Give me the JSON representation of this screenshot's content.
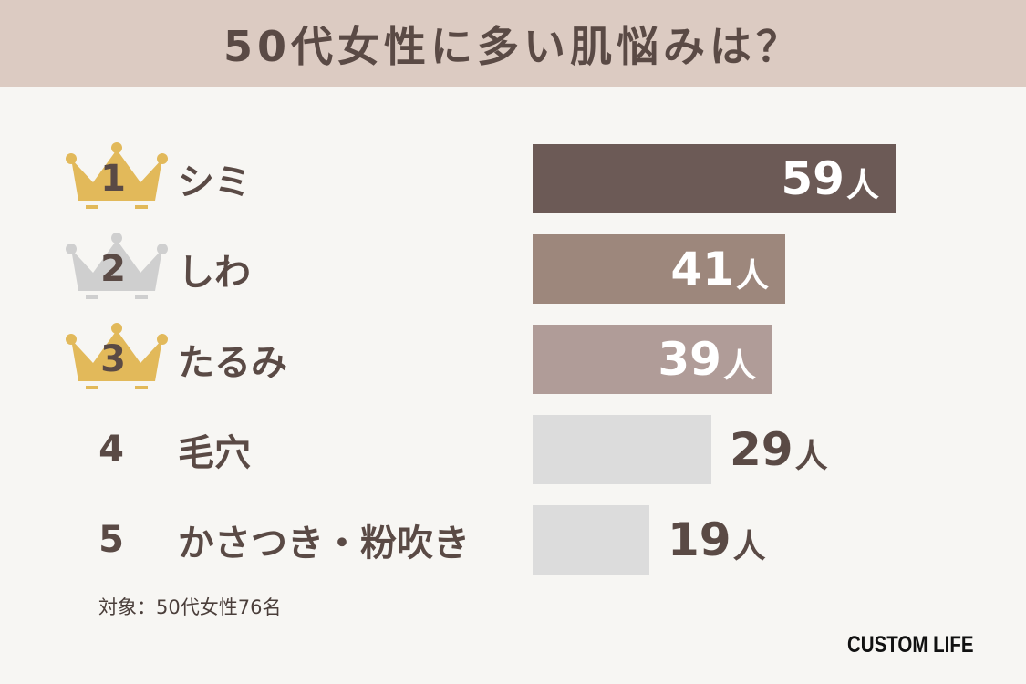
{
  "title": "50代女性に多い肌悩みは？",
  "footnote": "対象：50代女性76名",
  "brand": "CUSTOM LIFE",
  "unit": "人",
  "colors": {
    "header_bg": "#dccbc2",
    "bar_rank1": "#6c5a56",
    "bar_rank2": "#9d877c",
    "bar_rank3": "#b09c98",
    "bar_other": "#dcdcdc",
    "crown_gold": "#e2b95a",
    "crown_silver": "#cfcfcf"
  },
  "rows": [
    {
      "rank": "1",
      "label": "シミ",
      "count": "59",
      "crown": "gold"
    },
    {
      "rank": "2",
      "label": "しわ",
      "count": "41",
      "crown": "silver"
    },
    {
      "rank": "3",
      "label": "たるみ",
      "count": "39",
      "crown": "gold"
    },
    {
      "rank": "4",
      "label": "毛穴",
      "count": "29",
      "crown": "none"
    },
    {
      "rank": "5",
      "label": "かさつき・粉吹き",
      "count": "19",
      "crown": "none"
    }
  ],
  "chart_data": {
    "type": "bar",
    "orientation": "horizontal",
    "title": "50代女性に多い肌悩みは？",
    "categories": [
      "シミ",
      "しわ",
      "たるみ",
      "毛穴",
      "かさつき・粉吹き"
    ],
    "values": [
      59,
      41,
      39,
      29,
      19
    ],
    "unit": "人",
    "grid": false
  }
}
